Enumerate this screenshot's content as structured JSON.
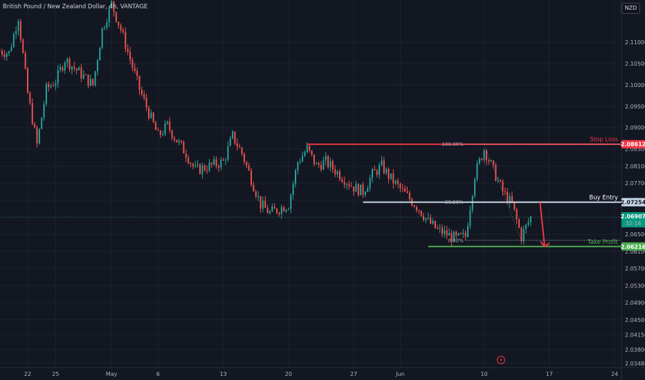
{
  "chart_title": "British Pound / New Zealand Dollar, 4h, VANTAGE",
  "currency": "NZD",
  "colors": {
    "background": "#131722",
    "up": "#26a69a",
    "down": "#ef5350",
    "stop": "#f23645",
    "entry": "#c8d9e8",
    "target": "#4caf50",
    "price": "#089981"
  },
  "chart_data": {
    "type": "candlestick",
    "ylim": [
      2.0338,
      2.1199
    ],
    "y_ticks": [
      "2.11000",
      "2.10500",
      "2.10000",
      "2.09500",
      "2.09000",
      "2.08500",
      "2.08100",
      "2.07700",
      "2.07300",
      "2.06900",
      "2.06500",
      "2.06100",
      "2.05700",
      "2.05300",
      "2.04900",
      "2.04500",
      "2.04150",
      "2.03800",
      "2.03480"
    ],
    "x_ticks": [
      "22",
      "25",
      "May",
      "6",
      "13",
      "20",
      "27",
      "Jun",
      "10",
      "17",
      "24"
    ],
    "keyframes": [
      {
        "date": "Apr 19",
        "price": 2.108
      },
      {
        "date": "Apr 20",
        "price": 2.1075
      },
      {
        "date": "Apr 21",
        "price": 2.116
      },
      {
        "date": "Apr 22",
        "price": 2.098
      },
      {
        "date": "Apr 23",
        "price": 2.086
      },
      {
        "date": "Apr 24",
        "price": 2.099
      },
      {
        "date": "Apr 25",
        "price": 2.101
      },
      {
        "date": "Apr 26",
        "price": 2.106
      },
      {
        "date": "Apr 29",
        "price": 2.1
      },
      {
        "date": "Apr 30",
        "price": 2.113
      },
      {
        "date": "May 1",
        "price": 2.119
      },
      {
        "date": "May 2",
        "price": 2.113
      },
      {
        "date": "May 3",
        "price": 2.106
      },
      {
        "date": "May 4",
        "price": 2.099
      },
      {
        "date": "May 6",
        "price": 2.088
      },
      {
        "date": "May 7",
        "price": 2.0905
      },
      {
        "date": "May 8",
        "price": 2.087
      },
      {
        "date": "May 9",
        "price": 2.084
      },
      {
        "date": "May 10",
        "price": 2.08
      },
      {
        "date": "May 13",
        "price": 2.082
      },
      {
        "date": "May 14",
        "price": 2.088
      },
      {
        "date": "May 15",
        "price": 2.084
      },
      {
        "date": "May 16",
        "price": 2.078
      },
      {
        "date": "May 17",
        "price": 2.072
      },
      {
        "date": "May 18",
        "price": 2.07
      },
      {
        "date": "May 20",
        "price": 2.072
      },
      {
        "date": "May 21",
        "price": 2.082
      },
      {
        "date": "May 22",
        "price": 2.085
      },
      {
        "date": "May 23",
        "price": 2.081
      },
      {
        "date": "May 24",
        "price": 2.082
      },
      {
        "date": "May 27",
        "price": 2.076
      },
      {
        "date": "May 28",
        "price": 2.075
      },
      {
        "date": "May 29",
        "price": 2.079
      },
      {
        "date": "May 30",
        "price": 2.081
      },
      {
        "date": "May 31",
        "price": 2.078
      },
      {
        "date": "Jun 3",
        "price": 2.071
      },
      {
        "date": "Jun 4",
        "price": 2.068
      },
      {
        "date": "Jun 5",
        "price": 2.066
      },
      {
        "date": "Jun 6",
        "price": 2.065
      },
      {
        "date": "Jun 7",
        "price": 2.064
      },
      {
        "date": "Jun 8",
        "price": 2.0645
      },
      {
        "date": "Jun 9",
        "price": 2.079
      },
      {
        "date": "Jun 10",
        "price": 2.085
      },
      {
        "date": "Jun 11",
        "price": 2.08
      },
      {
        "date": "Jun 12",
        "price": 2.075
      },
      {
        "date": "Jun 13",
        "price": 2.072
      },
      {
        "date": "Jun 14",
        "price": 2.0645
      },
      {
        "date": "Jun 15",
        "price": 2.069
      }
    ],
    "levels": {
      "stop_loss": {
        "label": "Stop Loss",
        "price": 2.08612,
        "tag": "2.08612"
      },
      "buy_entry": {
        "label": "Buy Entry",
        "price": 2.07254,
        "tag": "2.07254"
      },
      "take_profit": {
        "label": "Take Profit",
        "price": 2.06216,
        "tag": "2.06216"
      },
      "current": {
        "price": 2.06907,
        "tag": "2.06907",
        "countdown": "32:14"
      }
    },
    "fib": [
      {
        "label": "100.00%",
        "price": 2.08612
      },
      {
        "label": "38.20%",
        "price": 2.07254
      },
      {
        "label": "0.00%",
        "price": 2.0636
      }
    ],
    "arrow": {
      "from": {
        "date": "Jun 16",
        "price": 2.07254
      },
      "to": {
        "date": "Jun 16.5",
        "price": 2.06216
      }
    }
  }
}
